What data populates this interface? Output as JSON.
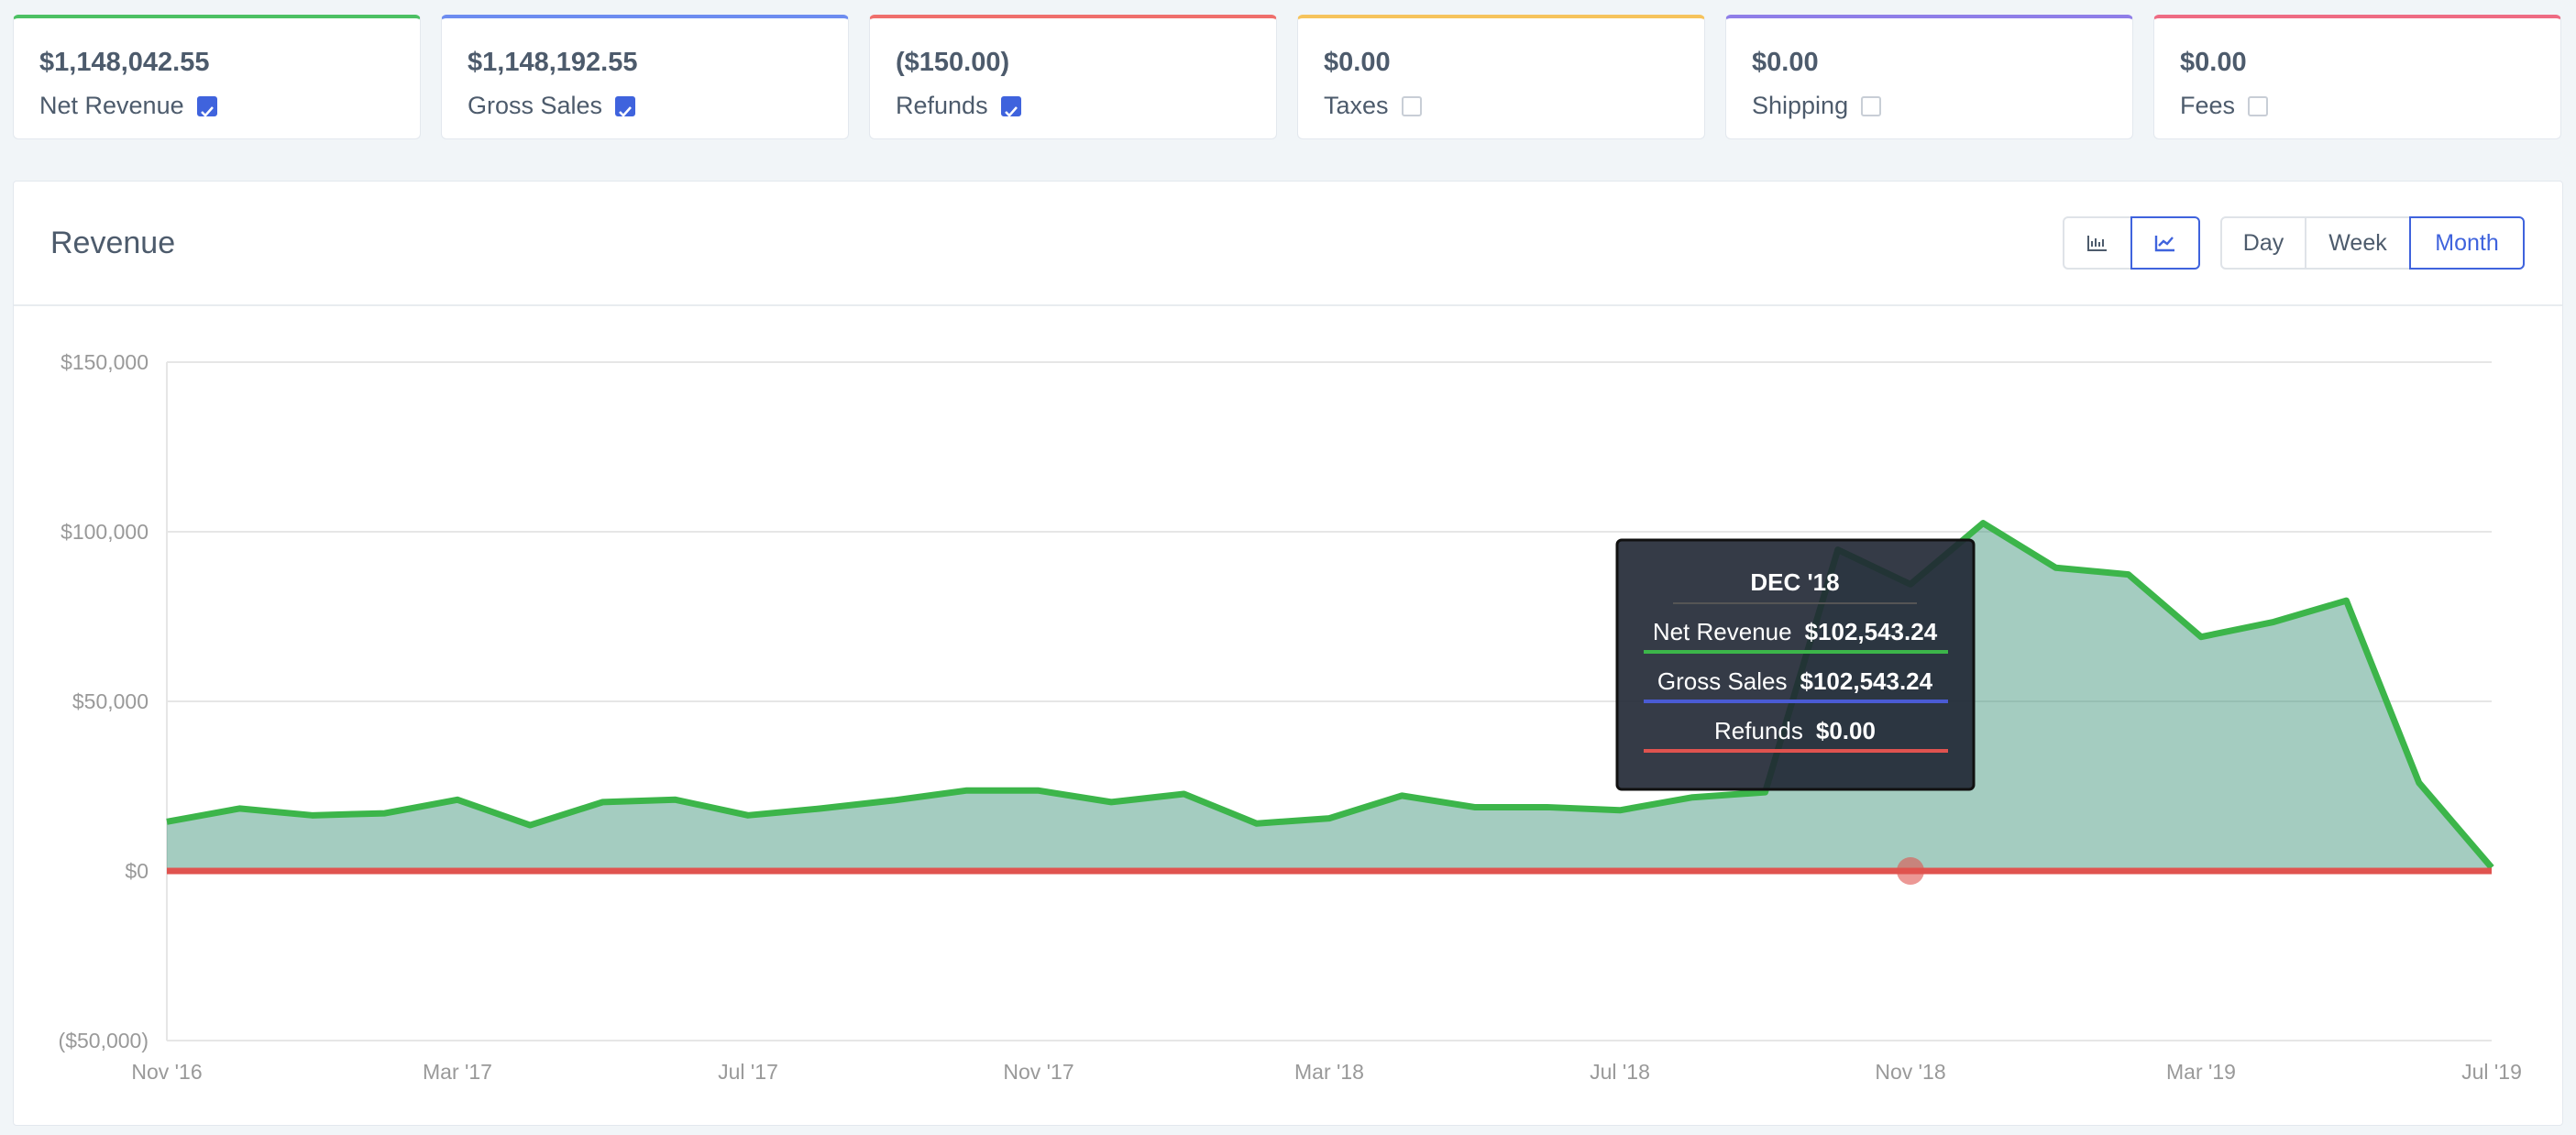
{
  "cards": [
    {
      "value": "$1,148,042.55",
      "label": "Net Revenue",
      "checked": true,
      "color": "#4cc063"
    },
    {
      "value": "$1,148,192.55",
      "label": "Gross Sales",
      "checked": true,
      "color": "#6d8cf0"
    },
    {
      "value": "($150.00)",
      "label": "Refunds",
      "checked": true,
      "color": "#ef6f6c"
    },
    {
      "value": "$0.00",
      "label": "Taxes",
      "checked": false,
      "color": "#f6c35c"
    },
    {
      "value": "$0.00",
      "label": "Shipping",
      "checked": false,
      "color": "#8f7ee8"
    },
    {
      "value": "$0.00",
      "label": "Fees",
      "checked": false,
      "color": "#ee6b83"
    }
  ],
  "panel": {
    "title": "Revenue",
    "intervals": [
      "Day",
      "Week",
      "Month"
    ],
    "active_interval": 2
  },
  "chart_data": {
    "type": "area",
    "categories": [
      "Nov '16",
      null,
      null,
      null,
      "Mar '17",
      null,
      null,
      null,
      "Jul '17",
      null,
      null,
      null,
      "Nov '17",
      null,
      null,
      null,
      "Mar '18",
      null,
      null,
      null,
      "Jul '18",
      null,
      null,
      null,
      "Nov '18",
      null,
      null,
      null,
      "Mar '19",
      null,
      null,
      null,
      "Jul '19"
    ],
    "series": [
      {
        "name": "Net Revenue",
        "color": "#3cb54a",
        "values": [
          14500,
          18400,
          16400,
          17000,
          21000,
          13500,
          20300,
          21000,
          16400,
          18400,
          20800,
          23700,
          23700,
          20300,
          22700,
          14000,
          15500,
          22200,
          18800,
          18800,
          17900,
          21700,
          23200,
          94700,
          84500,
          102543.24,
          89400,
          87400,
          69000,
          73400,
          79700,
          26000,
          1000
        ]
      },
      {
        "name": "Gross Sales",
        "color": "#4a5bd4",
        "values": [
          14500,
          18400,
          16400,
          17000,
          21000,
          13500,
          20300,
          21000,
          16400,
          18400,
          20800,
          23700,
          23700,
          20300,
          22700,
          14000,
          15500,
          22200,
          18800,
          18800,
          17900,
          21700,
          23200,
          94700,
          84500,
          102543.24,
          89400,
          87400,
          69000,
          73400,
          79700,
          26000,
          1000
        ]
      },
      {
        "name": "Refunds",
        "color": "#e0534f",
        "values": [
          0,
          0,
          0,
          0,
          0,
          0,
          0,
          0,
          0,
          0,
          0,
          0,
          0,
          0,
          0,
          0,
          0,
          0,
          0,
          0,
          0,
          0,
          0,
          0,
          0,
          0,
          0,
          0,
          0,
          0,
          0,
          0,
          0
        ]
      }
    ],
    "ylim": [
      -50000,
      150000
    ],
    "yticks": [
      {
        "value": -50000,
        "label": "($50,000)"
      },
      {
        "value": 0,
        "label": "$0"
      },
      {
        "value": 50000,
        "label": "$50,000"
      },
      {
        "value": 100000,
        "label": "$100,000"
      },
      {
        "value": 150000,
        "label": "$150,000"
      }
    ],
    "grid": true
  },
  "tooltip": {
    "title": "DEC '18",
    "rows": [
      "$102,543.24",
      "$102,543.24",
      "$0.00"
    ]
  }
}
